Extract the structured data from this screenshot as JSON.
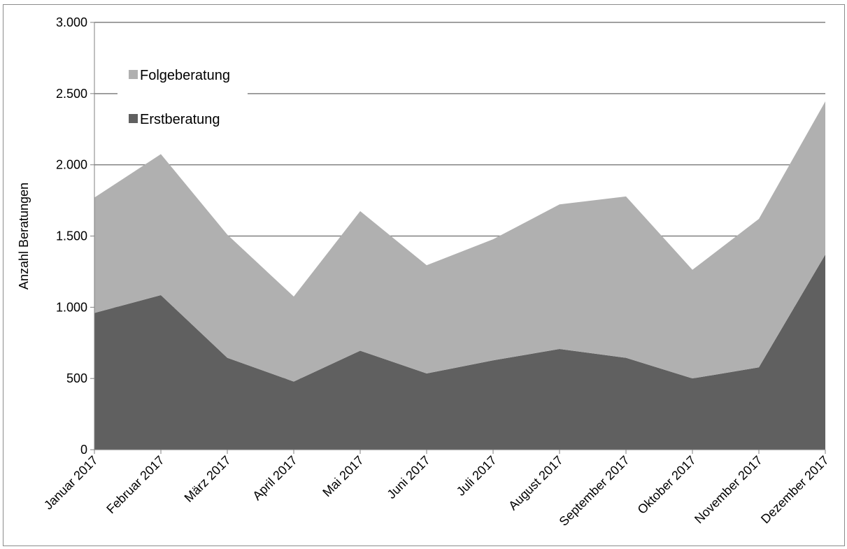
{
  "chart_data": {
    "type": "area",
    "stacked": true,
    "categories": [
      "Januar 2017",
      "Februar 2017",
      "März 2017",
      "April 2017",
      "Mai 2017",
      "Juni 2017",
      "Juli 2017",
      "August 2017",
      "September 2017",
      "Oktober 2017",
      "November 2017",
      "Dezember 2017"
    ],
    "series": [
      {
        "name": "Erstberatung",
        "color": "#606060",
        "values": [
          960,
          1085,
          645,
          478,
          695,
          535,
          627,
          707,
          645,
          500,
          578,
          1370
        ]
      },
      {
        "name": "Folgeberatung",
        "color": "#b0b0b0",
        "values": [
          810,
          990,
          865,
          597,
          980,
          760,
          850,
          1015,
          1133,
          763,
          1042,
          1075
        ]
      }
    ],
    "ylabel": "Anzahl Beratungen",
    "ylim": [
      0,
      3000
    ],
    "yticks": [
      0,
      500,
      1000,
      1500,
      2000,
      2500,
      3000
    ],
    "ytick_labels": [
      "0",
      "500",
      "1.000",
      "1.500",
      "2.000",
      "2.500",
      "3.000"
    ],
    "grid": true,
    "legend": {
      "position": "top-left",
      "order": [
        "Folgeberatung",
        "Erstberatung"
      ]
    }
  }
}
